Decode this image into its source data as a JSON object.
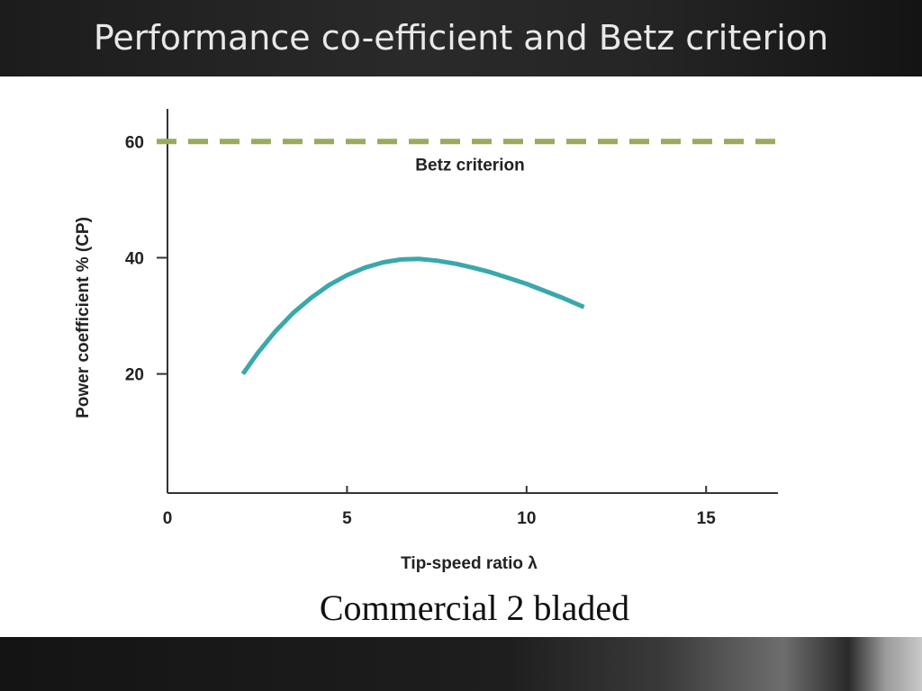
{
  "slide": {
    "title": "Performance co-efficient and Betz criterion",
    "caption": "Commercial 2 bladed"
  },
  "chart_data": {
    "type": "line",
    "title": "",
    "xlabel": "Tip-speed ratio λ",
    "ylabel": "Power coefficient % (CP)",
    "xlim": [
      0,
      17
    ],
    "ylim": [
      -0.5,
      65
    ],
    "x_ticks": [
      0,
      5,
      10,
      15
    ],
    "x_tick_labels": [
      "0",
      "5",
      "10",
      "15"
    ],
    "y_ticks": [
      20,
      40,
      60
    ],
    "y_tick_labels": [
      "20",
      "40",
      "60"
    ],
    "grid": false,
    "series": [
      {
        "color": "#3aa8aa",
        "x": [
          2.1,
          2.5,
          3.0,
          3.5,
          4.0,
          4.5,
          5.0,
          5.5,
          6.0,
          6.5,
          7.0,
          7.5,
          8.0,
          8.5,
          9.0,
          9.5,
          10.0,
          10.5,
          11.0,
          11.6
        ],
        "y": [
          20,
          23.5,
          27.3,
          30.5,
          33.1,
          35.3,
          37.0,
          38.3,
          39.2,
          39.7,
          39.8,
          39.5,
          39.0,
          38.3,
          37.5,
          36.5,
          35.5,
          34.3,
          33.1,
          31.5
        ]
      }
    ],
    "reference_line": {
      "y": 60,
      "label": "Betz criterion",
      "color": "#9aaa5e",
      "style": "dashed"
    }
  }
}
